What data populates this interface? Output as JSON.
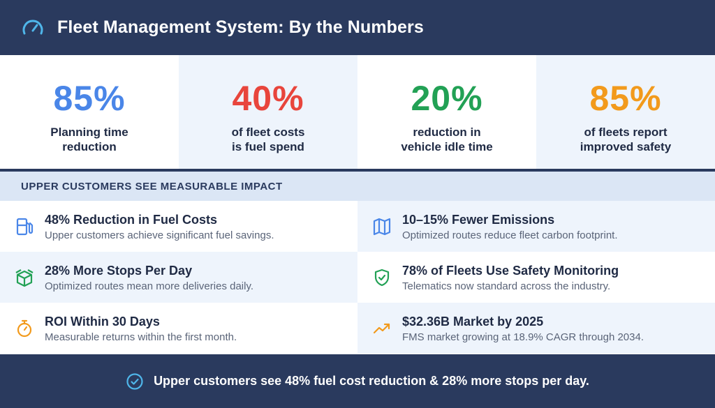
{
  "header": {
    "title": "Fleet Management System: By the Numbers",
    "icon": "speedometer-icon"
  },
  "stats": [
    {
      "value": "85%",
      "line1": "Planning time",
      "line2": "reduction",
      "color": "#4a86e8"
    },
    {
      "value": "40%",
      "line1": "of fleet costs",
      "line2": "is fuel spend",
      "color": "#e8453c"
    },
    {
      "value": "20%",
      "line1": "reduction in",
      "line2": "vehicle idle time",
      "color": "#22a155"
    },
    {
      "value": "85%",
      "line1": "of fleets report",
      "line2": "improved safety",
      "color": "#f29a1c"
    }
  ],
  "section": {
    "heading": "UPPER CUSTOMERS SEE MEASURABLE IMPACT"
  },
  "impacts": [
    {
      "title": "48% Reduction in Fuel Costs",
      "desc": "Upper customers achieve significant fuel savings.",
      "icon": "fuel-pump-icon",
      "color": "#4a86e8"
    },
    {
      "title": "10–15% Fewer Emissions",
      "desc": "Optimized routes reduce fleet carbon footprint.",
      "icon": "map-icon",
      "color": "#4a86e8"
    },
    {
      "title": "28% More Stops Per Day",
      "desc": "Optimized routes mean more deliveries daily.",
      "icon": "package-icon",
      "color": "#22a155"
    },
    {
      "title": "78% of Fleets Use Safety Monitoring",
      "desc": "Telematics now standard across the industry.",
      "icon": "shield-check-icon",
      "color": "#22a155"
    },
    {
      "title": "ROI Within 30 Days",
      "desc": "Measurable returns within the first month.",
      "icon": "stopwatch-icon",
      "color": "#f29a1c"
    },
    {
      "title": "$32.36B Market by 2025",
      "desc": "FMS market growing at 18.9% CAGR through 2034.",
      "icon": "trending-up-icon",
      "color": "#f29a1c"
    }
  ],
  "footer": {
    "text": "Upper customers see 48% fuel cost reduction & 28% more stops per day.",
    "icon": "check-circle-icon"
  }
}
